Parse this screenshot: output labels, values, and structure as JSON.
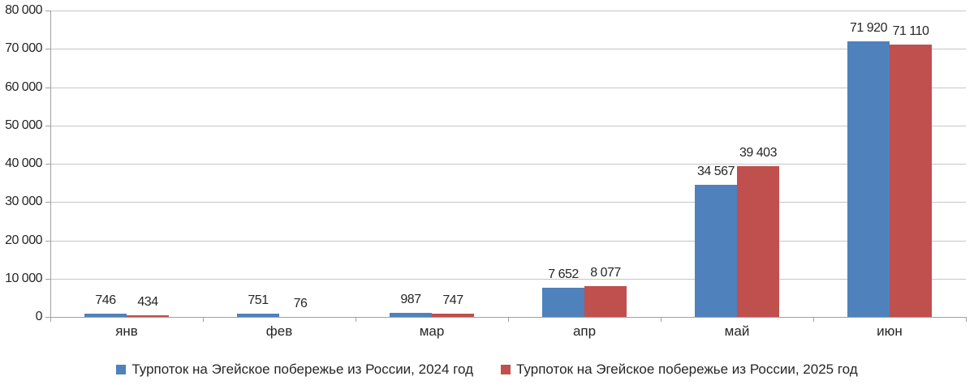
{
  "chart_data": {
    "type": "bar",
    "categories": [
      "янв",
      "фев",
      "мар",
      "апр",
      "май",
      "июн"
    ],
    "series": [
      {
        "name": "Турпоток на Эгейское побережье из России, 2024 год",
        "color": "#4f81bd",
        "values": [
          746,
          751,
          987,
          7652,
          34567,
          71920
        ],
        "labels": [
          "746",
          "751",
          "987",
          "7 652",
          "34 567",
          "71 920"
        ]
      },
      {
        "name": "Турпоток на Эгейское побережье из России, 2025 год",
        "color": "#c0504d",
        "values": [
          434,
          76,
          747,
          8077,
          39403,
          71110
        ],
        "labels": [
          "434",
          "76",
          "747",
          "8 077",
          "39 403",
          "71 110"
        ]
      }
    ],
    "title": "",
    "xlabel": "",
    "ylabel": "",
    "ylim": [
      0,
      80000
    ],
    "ytick_step": 10000,
    "yticks": [
      "0",
      "10 000",
      "20 000",
      "30 000",
      "40 000",
      "50 000",
      "60 000",
      "70 000",
      "80 000"
    ],
    "grid": true,
    "legend_position": "bottom",
    "colors": {
      "grid": "#c6c6c6",
      "axis": "#a0a0a0",
      "text": "#262626",
      "background": "#ffffff"
    }
  }
}
